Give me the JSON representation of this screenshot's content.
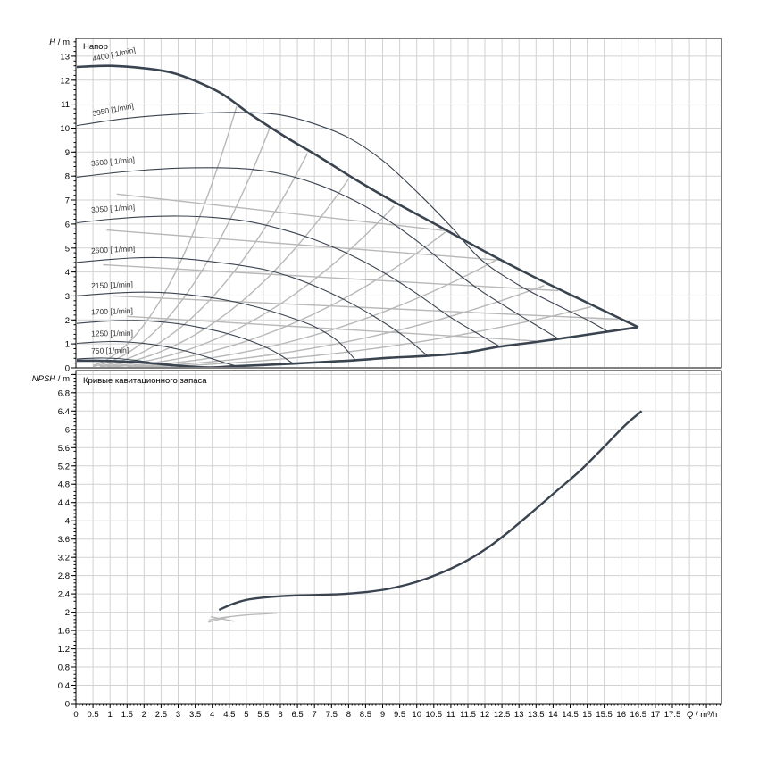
{
  "colors": {
    "curve_dark": "#3a4450",
    "guide_gray": "#b8b8b8",
    "grid": "#d2d2d2",
    "axis": "#000000",
    "text": "#000000",
    "label_text": "#333333"
  },
  "chart_data": [
    {
      "type": "line",
      "title": "Напор",
      "ylabel_italic": "H",
      "ylabel_rest": " / m",
      "xlabel_italic": "Q",
      "xlabel_rest": " / m³/h",
      "xlim": [
        0,
        18.94
      ],
      "ylim": [
        0,
        13.74
      ],
      "x_major": 0.5,
      "x_minor": 0.1,
      "y_major": 1,
      "y_minor": 0.2,
      "grid": true,
      "legend": "none",
      "x_tick_labels": [
        "0",
        "0.5",
        "1",
        "1.5",
        "2",
        "2.5",
        "3",
        "3.5",
        "4",
        "4.5",
        "5",
        "5.5",
        "6",
        "6.5",
        "7",
        "7.5",
        "8",
        "8.5",
        "9",
        "9.5",
        "10",
        "10.5",
        "11",
        "11.5",
        "12",
        "12.5",
        "13",
        "13.5",
        "14",
        "14.5",
        "15",
        "15.5",
        "16",
        "16.5",
        "17",
        "17.5"
      ],
      "y_tick_labels": [
        "0",
        "1",
        "2",
        "3",
        "4",
        "5",
        "6",
        "7",
        "8",
        "9",
        "10",
        "11",
        "12",
        "13"
      ],
      "series": [
        {
          "name": "4400 [1/min]",
          "role": "envelope-top",
          "width": "thick",
          "color": "dark",
          "points": [
            [
              0,
              12.55
            ],
            [
              1,
              12.6
            ],
            [
              2,
              12.5
            ],
            [
              2.8,
              12.32
            ],
            [
              3.5,
              11.97
            ],
            [
              4.3,
              11.42
            ],
            [
              5.1,
              10.6
            ],
            [
              6.1,
              9.68
            ],
            [
              7.2,
              8.75
            ],
            [
              8.2,
              7.86
            ],
            [
              9.3,
              6.95
            ],
            [
              10.6,
              5.95
            ],
            [
              11.9,
              4.93
            ],
            [
              13.4,
              3.82
            ],
            [
              15,
              2.72
            ],
            [
              16.5,
              1.7
            ]
          ]
        },
        {
          "name": "3950 [1/min]",
          "width": "thin",
          "color": "dark",
          "points": [
            [
              0,
              10.1
            ],
            [
              1,
              10.32
            ],
            [
              2,
              10.48
            ],
            [
              3,
              10.58
            ],
            [
              4,
              10.64
            ],
            [
              5,
              10.65
            ],
            [
              6,
              10.55
            ],
            [
              7,
              10.18
            ],
            [
              8,
              9.6
            ],
            [
              9,
              8.65
            ],
            [
              10,
              7.35
            ],
            [
              11,
              5.9
            ],
            [
              11.9,
              4.5
            ],
            [
              13,
              3.45
            ],
            [
              14,
              2.7
            ],
            [
              15,
              2.0
            ],
            [
              15.6,
              1.52
            ]
          ]
        },
        {
          "name": "3500 [1/min]",
          "width": "thin",
          "color": "dark",
          "points": [
            [
              0,
              7.95
            ],
            [
              1,
              8.12
            ],
            [
              2,
              8.25
            ],
            [
              3,
              8.33
            ],
            [
              4,
              8.35
            ],
            [
              5,
              8.3
            ],
            [
              6,
              8.1
            ],
            [
              7,
              7.7
            ],
            [
              8,
              7.1
            ],
            [
              9,
              6.3
            ],
            [
              10,
              5.3
            ],
            [
              11,
              4.15
            ],
            [
              11.9,
              3.2
            ],
            [
              12.9,
              2.3
            ],
            [
              13.6,
              1.7
            ],
            [
              14.15,
              1.22
            ]
          ]
        },
        {
          "name": "3050 [1/min]",
          "width": "thin",
          "color": "dark",
          "points": [
            [
              0,
              6.05
            ],
            [
              1,
              6.2
            ],
            [
              2,
              6.3
            ],
            [
              3,
              6.33
            ],
            [
              4,
              6.28
            ],
            [
              5,
              6.12
            ],
            [
              6,
              5.8
            ],
            [
              7,
              5.35
            ],
            [
              8,
              4.75
            ],
            [
              9,
              4.0
            ],
            [
              10,
              3.1
            ],
            [
              11,
              2.1
            ],
            [
              11.8,
              1.42
            ],
            [
              12.45,
              0.88
            ]
          ]
        },
        {
          "name": "2600 [1/min]",
          "width": "thin",
          "color": "dark",
          "points": [
            [
              0,
              4.4
            ],
            [
              0.8,
              4.5
            ],
            [
              1.6,
              4.58
            ],
            [
              2.4,
              4.6
            ],
            [
              3.2,
              4.55
            ],
            [
              4,
              4.43
            ],
            [
              4.8,
              4.28
            ],
            [
              5.6,
              4.08
            ],
            [
              6.4,
              3.75
            ],
            [
              7.2,
              3.3
            ],
            [
              8,
              2.75
            ],
            [
              8.8,
              2.1
            ],
            [
              9.6,
              1.35
            ],
            [
              10.3,
              0.52
            ]
          ]
        },
        {
          "name": "2150 [1/min]",
          "width": "thin",
          "color": "dark",
          "points": [
            [
              0,
              3.0
            ],
            [
              0.7,
              3.08
            ],
            [
              1.4,
              3.14
            ],
            [
              2.1,
              3.16
            ],
            [
              2.8,
              3.12
            ],
            [
              3.5,
              3.02
            ],
            [
              4.2,
              2.88
            ],
            [
              4.9,
              2.68
            ],
            [
              5.6,
              2.42
            ],
            [
              6.3,
              2.1
            ],
            [
              7,
              1.72
            ],
            [
              7.7,
              1.1
            ],
            [
              8.2,
              0.33
            ]
          ]
        },
        {
          "name": "1700 [1/min]",
          "width": "thin",
          "color": "dark",
          "points": [
            [
              0,
              1.85
            ],
            [
              0.6,
              1.92
            ],
            [
              1.2,
              1.97
            ],
            [
              1.8,
              1.98
            ],
            [
              2.4,
              1.93
            ],
            [
              3,
              1.84
            ],
            [
              3.6,
              1.7
            ],
            [
              4.2,
              1.52
            ],
            [
              4.8,
              1.28
            ],
            [
              5.4,
              0.97
            ],
            [
              5.9,
              0.62
            ],
            [
              6.35,
              0.2
            ]
          ]
        },
        {
          "name": "1250 [1/min]",
          "width": "thin",
          "color": "dark",
          "points": [
            [
              0,
              1.02
            ],
            [
              0.5,
              1.07
            ],
            [
              1,
              1.1
            ],
            [
              1.5,
              1.08
            ],
            [
              2,
              1.02
            ],
            [
              2.5,
              0.92
            ],
            [
              3,
              0.78
            ],
            [
              3.5,
              0.6
            ],
            [
              4,
              0.38
            ],
            [
              4.4,
              0.2
            ],
            [
              4.72,
              0.07
            ]
          ]
        },
        {
          "name": "750 [1/min]",
          "width": "thin",
          "color": "dark",
          "points": [
            [
              0,
              0.37
            ],
            [
              0.4,
              0.4
            ],
            [
              0.8,
              0.41
            ],
            [
              1.2,
              0.39
            ],
            [
              1.6,
              0.34
            ],
            [
              2,
              0.27
            ],
            [
              2.4,
              0.18
            ],
            [
              2.85,
              0.07
            ]
          ]
        },
        {
          "name": "operating-range lower envelope",
          "role": "envelope-bottom",
          "width": "thick",
          "color": "dark",
          "points": [
            [
              0,
              0.3
            ],
            [
              0.6,
              0.3
            ],
            [
              1.2,
              0.28
            ],
            [
              1.8,
              0.24
            ],
            [
              2.4,
              0.17
            ],
            [
              3,
              0.09
            ],
            [
              3.6,
              0.03
            ],
            [
              4,
              0.02
            ],
            [
              4.7,
              0.07
            ],
            [
              5.5,
              0.12
            ],
            [
              6.4,
              0.18
            ],
            [
              7.3,
              0.25
            ],
            [
              8.2,
              0.32
            ],
            [
              9.2,
              0.42
            ],
            [
              10.3,
              0.5
            ],
            [
              11.4,
              0.63
            ],
            [
              12.4,
              0.88
            ],
            [
              13.5,
              1.08
            ],
            [
              14.5,
              1.28
            ],
            [
              15.5,
              1.49
            ],
            [
              16.5,
              1.7
            ]
          ]
        }
      ],
      "curve_labels": [
        {
          "text": "4400 [ 1/min]",
          "q": 0.5,
          "h": 12.78,
          "angle": -12
        },
        {
          "text": "3950 [1/min]",
          "q": 0.5,
          "h": 10.5,
          "angle": -11
        },
        {
          "text": "3500 [ 1/min]",
          "q": 0.45,
          "h": 8.42,
          "angle": -5
        },
        {
          "text": "3050 [ 1/min]",
          "q": 0.45,
          "h": 6.48,
          "angle": -4
        },
        {
          "text": "2600 [ 1/min]",
          "q": 0.45,
          "h": 4.78,
          "angle": -3
        },
        {
          "text": "2150 [1/min]",
          "q": 0.45,
          "h": 3.32,
          "angle": -2
        },
        {
          "text": "1700 [1/min]",
          "q": 0.45,
          "h": 2.22,
          "angle": -2
        },
        {
          "text": "1250 [1/min]",
          "q": 0.45,
          "h": 1.32,
          "angle": -1
        },
        {
          "text": "750 [1/min]",
          "q": 0.45,
          "h": 0.6,
          "angle": -1
        }
      ],
      "guide_lines": {
        "rising_coeffs": [
          0.42,
          0.26,
          0.16,
          0.1,
          0.062,
          0.038,
          0.023,
          0.014,
          0.0085
        ],
        "rising_exponent": 2.1,
        "falling_segments": [
          [
            [
              1.2,
              7.25
            ],
            [
              10.85,
              5.72
            ]
          ],
          [
            [
              0.9,
              5.75
            ],
            [
              12.55,
              4.48
            ]
          ],
          [
            [
              0.8,
              4.3
            ],
            [
              14.15,
              3.22
            ]
          ],
          [
            [
              1.1,
              3.0
            ],
            [
              15.9,
              2.03
            ]
          ],
          [
            [
              1.5,
              2.15
            ],
            [
              13.5,
              1.12
            ]
          ]
        ]
      }
    },
    {
      "type": "line",
      "title": "Кривые кавитационного запаса",
      "ylabel_italic": "NPSH",
      "ylabel_rest": " / m",
      "xlim": [
        0,
        18.94
      ],
      "ylim": [
        0,
        7.29
      ],
      "y_major": 0.4,
      "y_minor": 0.08,
      "grid": true,
      "legend": "none",
      "y_tick_labels": [
        "0",
        "0.4",
        "0.8",
        "1.2",
        "1.6",
        "2",
        "2.4",
        "2.8",
        "3.2",
        "3.6",
        "4",
        "4.4",
        "4.8",
        "5.2",
        "5.6",
        "6",
        "6.4",
        "6.8"
      ],
      "series": [
        {
          "name": "NPSH curve",
          "width": "thick",
          "color": "dark",
          "points": [
            [
              4.2,
              2.05
            ],
            [
              4.6,
              2.18
            ],
            [
              5,
              2.27
            ],
            [
              5.5,
              2.32
            ],
            [
              6,
              2.35
            ],
            [
              6.6,
              2.37
            ],
            [
              7.2,
              2.38
            ],
            [
              7.9,
              2.4
            ],
            [
              8.5,
              2.44
            ],
            [
              9.1,
              2.5
            ],
            [
              9.7,
              2.6
            ],
            [
              10.3,
              2.74
            ],
            [
              10.9,
              2.92
            ],
            [
              11.5,
              3.14
            ],
            [
              12.1,
              3.42
            ],
            [
              12.7,
              3.76
            ],
            [
              13.4,
              4.2
            ],
            [
              14.1,
              4.65
            ],
            [
              14.8,
              5.1
            ],
            [
              15.5,
              5.62
            ],
            [
              16.1,
              6.08
            ],
            [
              16.6,
              6.4
            ]
          ]
        },
        {
          "name": "NPSH guide (gray)",
          "width": "thin",
          "color": "gray",
          "points": [
            [
              3.9,
              1.83
            ],
            [
              4.4,
              1.89
            ],
            [
              5,
              1.94
            ],
            [
              5.5,
              1.96
            ],
            [
              5.9,
              1.98
            ]
          ]
        },
        {
          "name": "gray-scribble-1",
          "width": "thin",
          "color": "gray",
          "points": [
            [
              3.88,
              1.78
            ],
            [
              4.5,
              1.9
            ]
          ]
        },
        {
          "name": "gray-scribble-2",
          "width": "thin",
          "color": "gray",
          "points": [
            [
              3.95,
              1.9
            ],
            [
              4.65,
              1.8
            ]
          ]
        }
      ]
    }
  ],
  "axis_unit_label": {
    "italic": "Q",
    "rest": " / m³/h"
  }
}
